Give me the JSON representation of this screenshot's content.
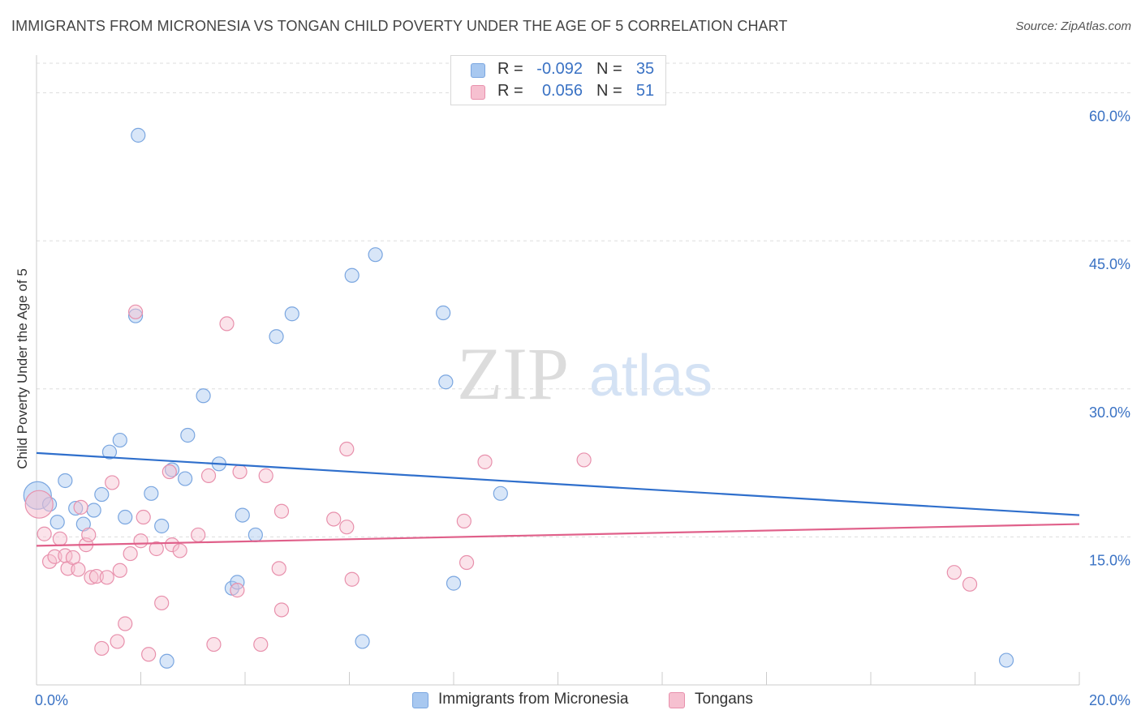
{
  "header": {
    "title": "IMMIGRANTS FROM MICRONESIA VS TONGAN CHILD POVERTY UNDER THE AGE OF 5 CORRELATION CHART",
    "source": "Source: ZipAtlas.com"
  },
  "watermark": {
    "zip": "ZIP",
    "atlas": "atlas"
  },
  "legend": {
    "rows": [
      {
        "r_label": "R =",
        "r_value": "-0.092",
        "n_label": "N =",
        "n_value": "35",
        "color": "#a8c8f0",
        "border": "#7aa6e0"
      },
      {
        "r_label": "R =",
        "r_value": "0.056",
        "n_label": "N =",
        "n_value": "51",
        "color": "#f6c0d0",
        "border": "#e890ac"
      }
    ]
  },
  "bottom_legend": [
    {
      "label": "Immigrants from Micronesia",
      "color": "#a8c8f0",
      "border": "#7aa6e0"
    },
    {
      "label": "Tongans",
      "color": "#f6c0d0",
      "border": "#e890ac"
    }
  ],
  "chart_data": {
    "type": "scatter",
    "title": "IMMIGRANTS FROM MICRONESIA VS TONGAN CHILD POVERTY UNDER THE AGE OF 5 CORRELATION CHART",
    "xlabel": "",
    "ylabel": "Child Poverty Under the Age of 5",
    "xlim": [
      0,
      20
    ],
    "ylim": [
      0,
      63
    ],
    "x_tick_labels": [
      "0.0%",
      "20.0%"
    ],
    "y_ticks": [
      15,
      30,
      45,
      60
    ],
    "y_tick_labels": [
      "15.0%",
      "30.0%",
      "45.0%",
      "60.0%"
    ],
    "grid": true,
    "series": [
      {
        "name": "Immigrants from Micronesia",
        "color": "#a8c8f0",
        "stroke": "#7aa6e0",
        "line_color": "#2f6fcc",
        "trend": [
          [
            0,
            23.5
          ],
          [
            20,
            17.2
          ]
        ],
        "points": [
          [
            0.02,
            19.2
          ],
          [
            0.25,
            18.3
          ],
          [
            0.4,
            16.5
          ],
          [
            0.55,
            20.7
          ],
          [
            0.75,
            17.9
          ],
          [
            0.9,
            16.3
          ],
          [
            1.1,
            17.7
          ],
          [
            1.25,
            19.3
          ],
          [
            1.4,
            23.6
          ],
          [
            1.6,
            24.8
          ],
          [
            1.7,
            17.0
          ],
          [
            1.9,
            37.4
          ],
          [
            1.95,
            55.7
          ],
          [
            2.2,
            19.4
          ],
          [
            2.4,
            16.1
          ],
          [
            2.5,
            2.4
          ],
          [
            2.6,
            21.8
          ],
          [
            2.85,
            20.9
          ],
          [
            2.9,
            25.3
          ],
          [
            3.2,
            29.3
          ],
          [
            3.5,
            22.4
          ],
          [
            3.75,
            9.8
          ],
          [
            3.85,
            10.4
          ],
          [
            3.95,
            17.2
          ],
          [
            4.2,
            15.2
          ],
          [
            4.6,
            35.3
          ],
          [
            4.9,
            37.6
          ],
          [
            6.05,
            41.5
          ],
          [
            6.25,
            4.4
          ],
          [
            6.5,
            43.6
          ],
          [
            7.8,
            37.7
          ],
          [
            7.85,
            30.7
          ],
          [
            8.0,
            10.3
          ],
          [
            8.9,
            19.4
          ],
          [
            18.6,
            2.5
          ]
        ]
      },
      {
        "name": "Tongans",
        "color": "#f6c0d0",
        "stroke": "#e890ac",
        "line_color": "#e0608a",
        "trend": [
          [
            0,
            14.1
          ],
          [
            20,
            16.3
          ]
        ],
        "points": [
          [
            0.05,
            18.3
          ],
          [
            0.15,
            15.3
          ],
          [
            0.25,
            12.5
          ],
          [
            0.35,
            13.0
          ],
          [
            0.45,
            14.8
          ],
          [
            0.55,
            13.1
          ],
          [
            0.6,
            11.8
          ],
          [
            0.7,
            12.9
          ],
          [
            0.8,
            11.7
          ],
          [
            0.85,
            18.0
          ],
          [
            0.95,
            14.2
          ],
          [
            1.0,
            15.2
          ],
          [
            1.05,
            10.9
          ],
          [
            1.15,
            11.0
          ],
          [
            1.25,
            3.7
          ],
          [
            1.35,
            10.9
          ],
          [
            1.45,
            20.5
          ],
          [
            1.55,
            4.4
          ],
          [
            1.6,
            11.6
          ],
          [
            1.7,
            6.2
          ],
          [
            1.8,
            13.3
          ],
          [
            1.9,
            37.8
          ],
          [
            2.0,
            14.6
          ],
          [
            2.05,
            17.0
          ],
          [
            2.15,
            3.1
          ],
          [
            2.3,
            13.8
          ],
          [
            2.4,
            8.3
          ],
          [
            2.55,
            21.6
          ],
          [
            2.6,
            14.2
          ],
          [
            2.75,
            13.6
          ],
          [
            3.1,
            15.2
          ],
          [
            3.3,
            21.2
          ],
          [
            3.4,
            4.1
          ],
          [
            3.65,
            36.6
          ],
          [
            3.85,
            9.6
          ],
          [
            3.9,
            21.6
          ],
          [
            4.3,
            4.1
          ],
          [
            4.4,
            21.2
          ],
          [
            4.65,
            11.8
          ],
          [
            4.7,
            7.6
          ],
          [
            4.7,
            17.6
          ],
          [
            5.7,
            16.8
          ],
          [
            5.95,
            23.9
          ],
          [
            5.95,
            16.0
          ],
          [
            6.05,
            10.7
          ],
          [
            8.2,
            16.6
          ],
          [
            8.25,
            12.4
          ],
          [
            8.6,
            22.6
          ],
          [
            10.5,
            22.8
          ],
          [
            17.6,
            11.4
          ],
          [
            17.9,
            10.2
          ]
        ]
      }
    ]
  }
}
